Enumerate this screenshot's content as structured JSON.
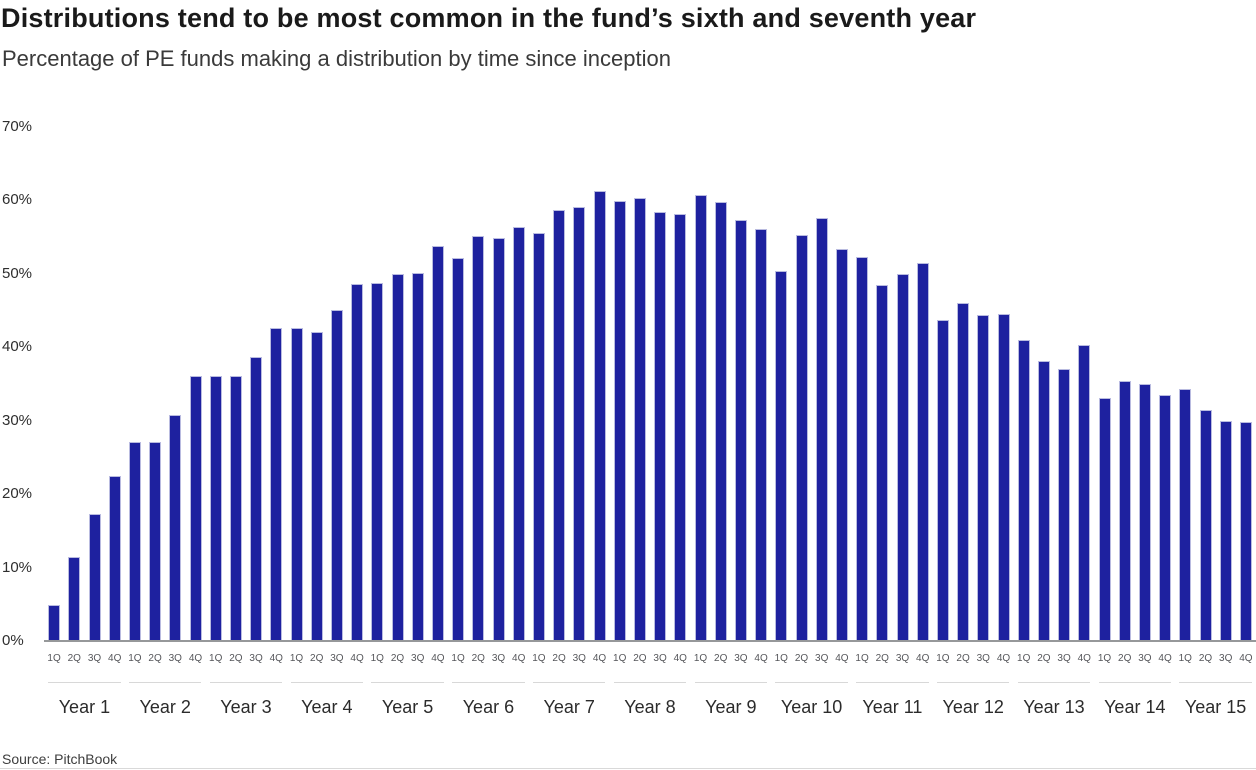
{
  "chart_data": {
    "type": "bar",
    "title": "Distributions tend to be most common in the fund’s sixth and seventh year",
    "subtitle": "Percentage of PE funds making a distribution by time since inception",
    "source": "Source: PitchBook",
    "xlabel": "",
    "ylabel": "",
    "ylim": [
      0,
      70
    ],
    "yticks": [
      0,
      10,
      20,
      30,
      40,
      50,
      60,
      70
    ],
    "ytick_suffix": "%",
    "grid": "off",
    "legend": "none",
    "quarter_labels": [
      "1Q",
      "2Q",
      "3Q",
      "4Q"
    ],
    "colors": {
      "bar": "#1e219f",
      "bar_edge": "#b9bbe0",
      "axis_line": "#96989a",
      "year_separator": "#d8d8d8"
    },
    "groups": [
      {
        "label": "Year 1",
        "values": [
          4.7,
          11.3,
          17.1,
          22.3
        ]
      },
      {
        "label": "Year 2",
        "values": [
          27.0,
          27.0,
          30.6,
          36.0
        ]
      },
      {
        "label": "Year 3",
        "values": [
          36.0,
          36.0,
          38.5,
          42.5
        ]
      },
      {
        "label": "Year 4",
        "values": [
          42.5,
          41.9,
          45.0,
          48.5
        ]
      },
      {
        "label": "Year 5",
        "values": [
          48.6,
          49.9,
          50.0,
          53.7
        ]
      },
      {
        "label": "Year 6",
        "values": [
          52.0,
          55.0,
          54.8,
          56.3
        ]
      },
      {
        "label": "Year 7",
        "values": [
          55.4,
          58.5,
          59.0,
          61.2
        ]
      },
      {
        "label": "Year 8",
        "values": [
          59.8,
          60.2,
          58.3,
          58.0
        ]
      },
      {
        "label": "Year 9",
        "values": [
          60.6,
          59.6,
          57.2,
          56.0
        ]
      },
      {
        "label": "Year 10",
        "values": [
          50.3,
          55.1,
          57.5,
          53.2
        ]
      },
      {
        "label": "Year 11",
        "values": [
          52.2,
          48.4,
          49.9,
          51.3
        ]
      },
      {
        "label": "Year 12",
        "values": [
          43.6,
          45.9,
          44.3,
          44.4
        ]
      },
      {
        "label": "Year 13",
        "values": [
          40.8,
          38.0,
          36.9,
          40.2
        ]
      },
      {
        "label": "Year 14",
        "values": [
          33.0,
          35.3,
          34.9,
          33.4
        ]
      },
      {
        "label": "Year 15",
        "values": [
          34.2,
          31.3,
          29.8,
          29.7
        ]
      }
    ]
  }
}
